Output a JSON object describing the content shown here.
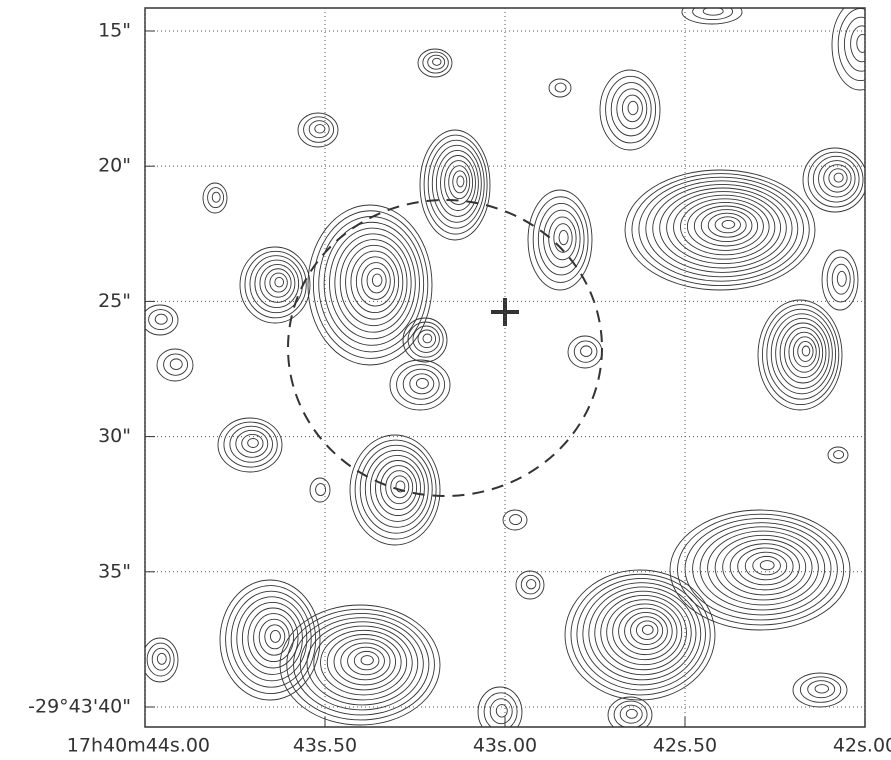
{
  "chart_data": {
    "type": "contour",
    "xlim": [
      44.0,
      42.0
    ],
    "ylim": [
      14.15,
      40.74
    ],
    "xticks": [
      {
        "value": 44.0,
        "label": "17h40m44s.00"
      },
      {
        "value": 43.5,
        "label": "43s.50"
      },
      {
        "value": 43.0,
        "label": "43s.00"
      },
      {
        "value": 42.5,
        "label": "42s.50"
      },
      {
        "value": 42.0,
        "label": "42s.00"
      }
    ],
    "yticks": [
      {
        "value": 15,
        "label": "15\""
      },
      {
        "value": 20,
        "label": "20\""
      },
      {
        "value": 25,
        "label": "25\""
      },
      {
        "value": 30,
        "label": "30\""
      },
      {
        "value": 35,
        "label": "35\""
      },
      {
        "value": 40,
        "label": "-29°43'40\""
      }
    ],
    "grid": true
  }
}
